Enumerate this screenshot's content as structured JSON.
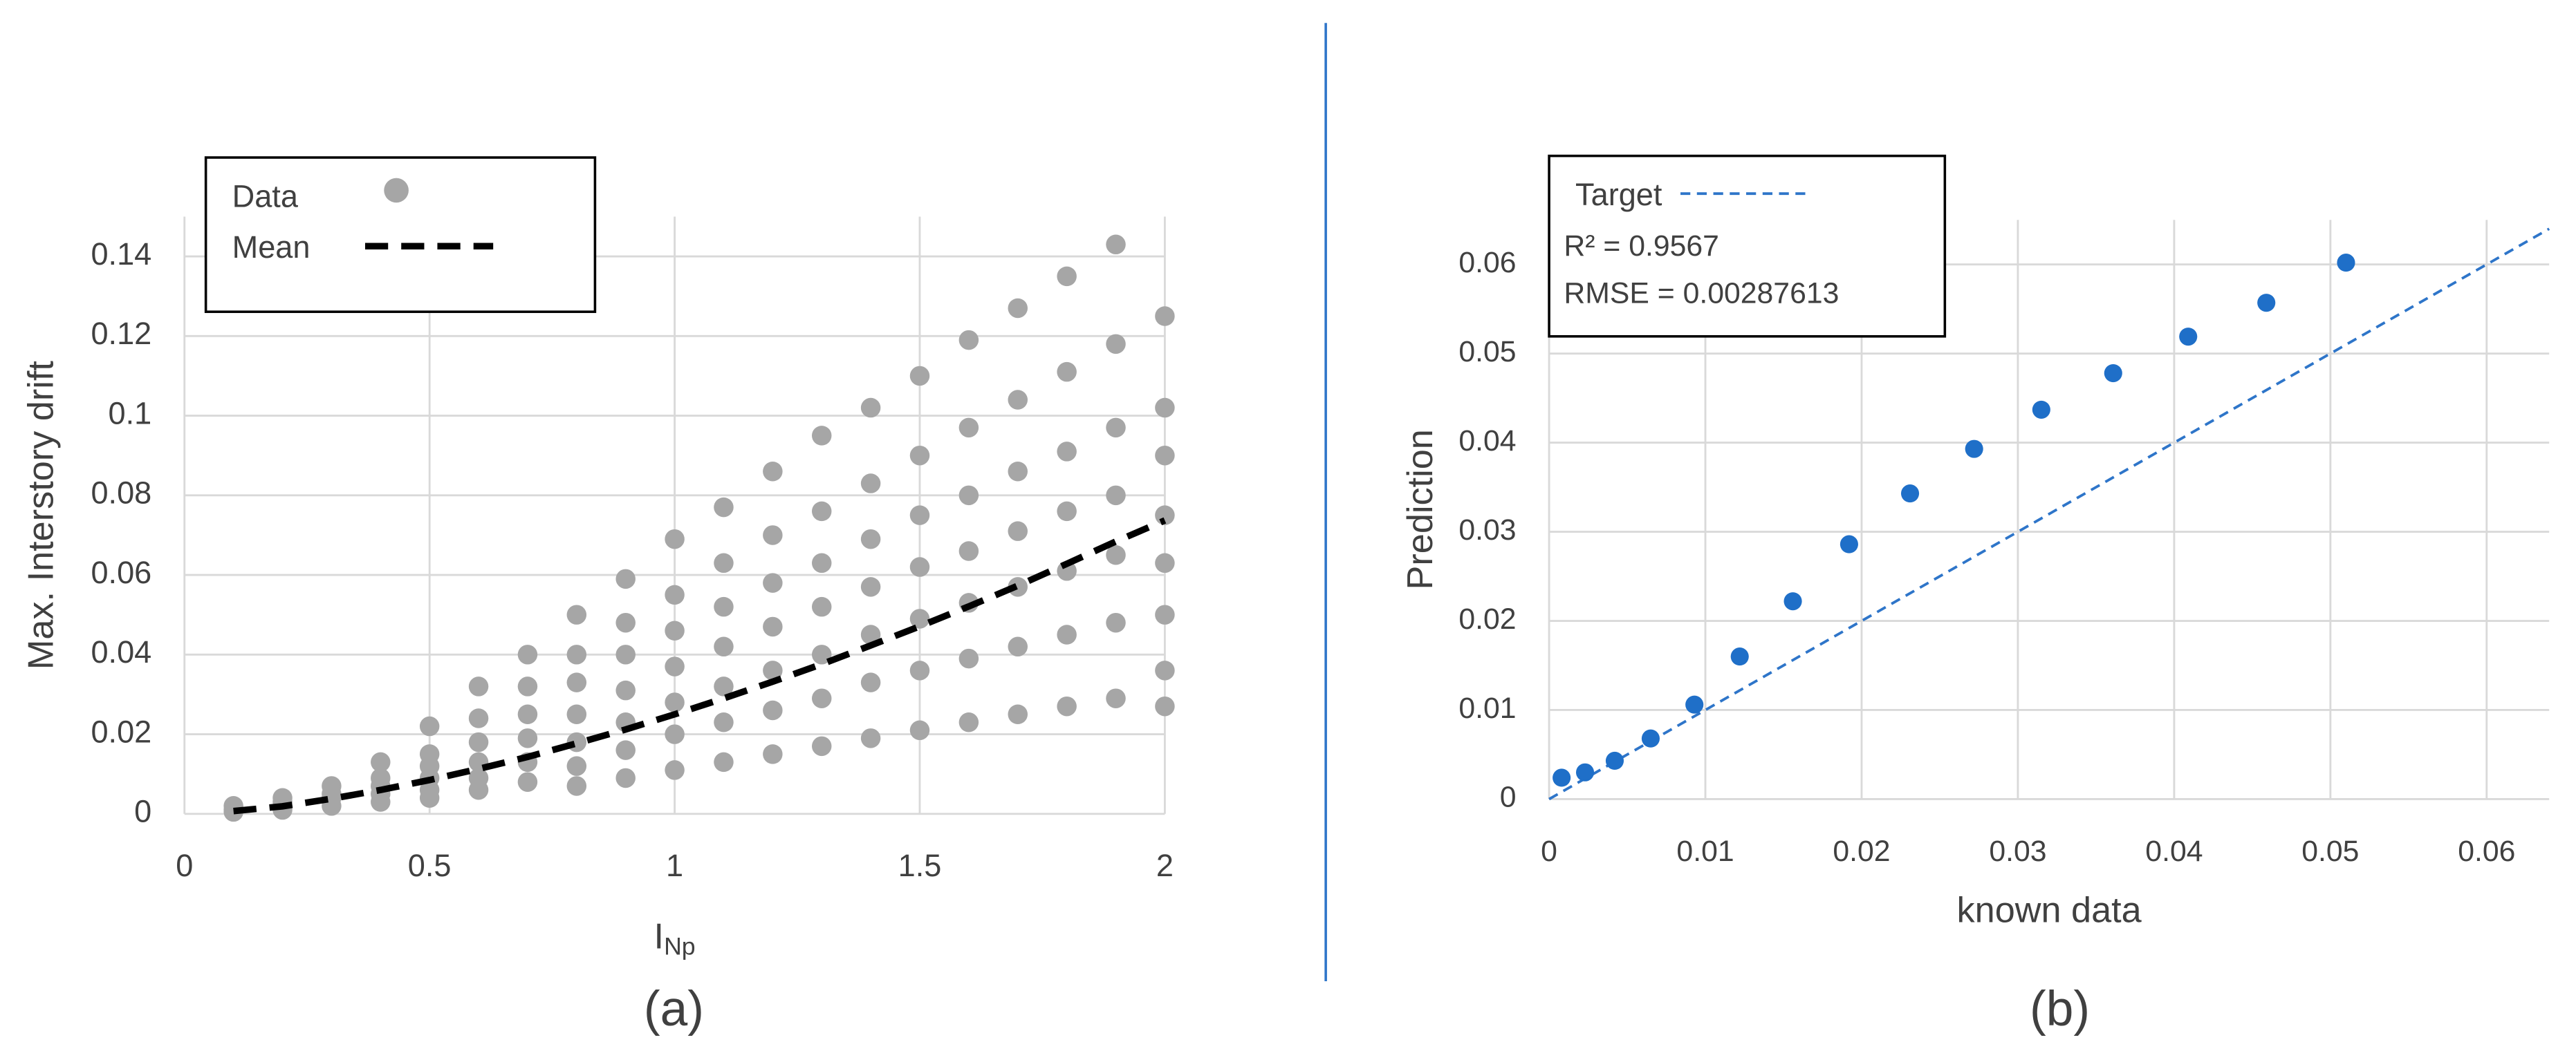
{
  "chart_data": [
    {
      "type": "scatter",
      "caption": "(a)",
      "y_label": "Max. Interstory drift",
      "x_label": "I",
      "x_label_subscript": "Np",
      "xlim": [
        0,
        2
      ],
      "ylim": [
        0,
        0.15
      ],
      "xticks": [
        0,
        0.5,
        1,
        1.5,
        2
      ],
      "yticks": [
        0,
        0.02,
        0.04,
        0.06,
        0.08,
        0.1,
        0.12,
        0.14
      ],
      "grid": true,
      "series": [
        {
          "name": "Data",
          "color": "#a6a6a6",
          "style": "points",
          "x": [
            0.1,
            0.1,
            0.1,
            0.2,
            0.2,
            0.2,
            0.2,
            0.3,
            0.3,
            0.3,
            0.3,
            0.4,
            0.4,
            0.4,
            0.4,
            0.4,
            0.5,
            0.5,
            0.5,
            0.5,
            0.5,
            0.5,
            0.6,
            0.6,
            0.6,
            0.6,
            0.6,
            0.6,
            0.7,
            0.7,
            0.7,
            0.7,
            0.7,
            0.7,
            0.8,
            0.8,
            0.8,
            0.8,
            0.8,
            0.8,
            0.8,
            0.9,
            0.9,
            0.9,
            0.9,
            0.9,
            0.9,
            0.9,
            1,
            1,
            1,
            1,
            1,
            1,
            1,
            1.1,
            1.1,
            1.1,
            1.1,
            1.1,
            1.1,
            1.1,
            1.2,
            1.2,
            1.2,
            1.2,
            1.2,
            1.2,
            1.2,
            1.3,
            1.3,
            1.3,
            1.3,
            1.3,
            1.3,
            1.3,
            1.4,
            1.4,
            1.4,
            1.4,
            1.4,
            1.4,
            1.4,
            1.5,
            1.5,
            1.5,
            1.5,
            1.5,
            1.5,
            1.5,
            1.6,
            1.6,
            1.6,
            1.6,
            1.6,
            1.6,
            1.6,
            1.7,
            1.7,
            1.7,
            1.7,
            1.7,
            1.7,
            1.7,
            1.8,
            1.8,
            1.8,
            1.8,
            1.8,
            1.8,
            1.8,
            1.9,
            1.9,
            1.9,
            1.9,
            1.9,
            1.9,
            1.9,
            2,
            2,
            2,
            2,
            2,
            2,
            2,
            2
          ],
          "y": [
            0.002,
            0.001,
            0.0005,
            0.004,
            0.003,
            0.002,
            0.001,
            0.007,
            0.005,
            0.004,
            0.002,
            0.013,
            0.009,
            0.007,
            0.005,
            0.003,
            0.022,
            0.015,
            0.012,
            0.009,
            0.006,
            0.004,
            0.032,
            0.024,
            0.018,
            0.013,
            0.009,
            0.006,
            0.04,
            0.032,
            0.025,
            0.019,
            0.013,
            0.008,
            0.05,
            0.04,
            0.033,
            0.025,
            0.018,
            0.012,
            0.007,
            0.059,
            0.048,
            0.04,
            0.031,
            0.023,
            0.016,
            0.009,
            0.069,
            0.055,
            0.046,
            0.037,
            0.028,
            0.02,
            0.011,
            0.077,
            0.063,
            0.052,
            0.042,
            0.032,
            0.023,
            0.013,
            0.086,
            0.07,
            0.058,
            0.047,
            0.036,
            0.026,
            0.015,
            0.095,
            0.076,
            0.063,
            0.052,
            0.04,
            0.029,
            0.017,
            0.102,
            0.083,
            0.069,
            0.057,
            0.045,
            0.033,
            0.019,
            0.11,
            0.09,
            0.075,
            0.062,
            0.049,
            0.036,
            0.021,
            0.119,
            0.097,
            0.08,
            0.066,
            0.053,
            0.039,
            0.023,
            0.127,
            0.104,
            0.086,
            0.071,
            0.057,
            0.042,
            0.025,
            0.135,
            0.111,
            0.091,
            0.076,
            0.061,
            0.045,
            0.027,
            0.143,
            0.118,
            0.097,
            0.08,
            0.065,
            0.048,
            0.029,
            0.125,
            0.102,
            0.09,
            0.075,
            0.063,
            0.05,
            0.036,
            0.027
          ]
        },
        {
          "name": "Mean",
          "color": "#000000",
          "style": "dashed",
          "x": [
            0.1,
            0.2,
            0.3,
            0.4,
            0.5,
            0.6,
            0.7,
            0.8,
            0.9,
            1,
            1.1,
            1.2,
            1.3,
            1.4,
            1.5,
            1.6,
            1.7,
            1.8,
            1.9,
            2
          ],
          "y": [
            0.0007,
            0.0019,
            0.0038,
            0.006,
            0.0085,
            0.0113,
            0.0143,
            0.0177,
            0.0212,
            0.025,
            0.029,
            0.0332,
            0.0376,
            0.0423,
            0.0471,
            0.0521,
            0.0573,
            0.0628,
            0.0684,
            0.0737
          ]
        }
      ]
    },
    {
      "type": "scatter",
      "caption": "(b)",
      "y_label": "Prediction",
      "x_label": "known data",
      "xlim": [
        0,
        0.064
      ],
      "ylim": [
        0,
        0.065
      ],
      "xticks": [
        0,
        0.01,
        0.02,
        0.03,
        0.04,
        0.05,
        0.06
      ],
      "yticks": [
        0,
        0.01,
        0.02,
        0.03,
        0.04,
        0.05,
        0.06
      ],
      "grid": true,
      "annotations": [
        "R² = 0.9567",
        "RMSE = 0.00287613"
      ],
      "series": [
        {
          "name": "Target",
          "color": "#2e75c9",
          "style": "thin-dashed",
          "x": [
            0,
            0.064
          ],
          "y": [
            0,
            0.064
          ]
        },
        {
          "name": null,
          "color": "#1f6fc8",
          "style": "points",
          "x": [
            0.0008,
            0.0023,
            0.0042,
            0.0065,
            0.0093,
            0.0122,
            0.0156,
            0.0192,
            0.0231,
            0.0272,
            0.0315,
            0.0361,
            0.0409,
            0.0459,
            0.051
          ],
          "y": [
            0.0024,
            0.003,
            0.0043,
            0.0068,
            0.0106,
            0.016,
            0.0222,
            0.0286,
            0.0343,
            0.0393,
            0.0437,
            0.0478,
            0.0519,
            0.0557,
            0.0602
          ]
        }
      ]
    }
  ]
}
